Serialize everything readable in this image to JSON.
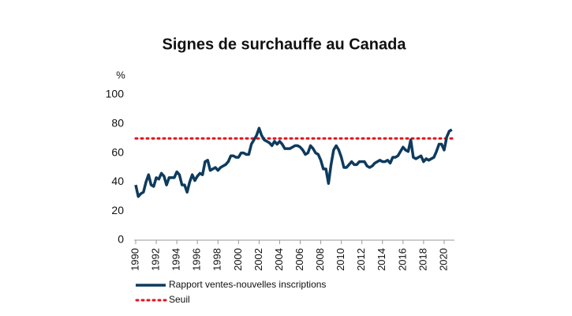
{
  "chart_data": {
    "type": "line",
    "title": "Signes de surchauffe au Canada",
    "ylabel": "%",
    "x": [
      1990,
      1990.25,
      1990.5,
      1990.75,
      1991,
      1991.25,
      1991.5,
      1991.75,
      1992,
      1992.25,
      1992.5,
      1992.75,
      1993,
      1993.25,
      1993.5,
      1993.75,
      1994,
      1994.25,
      1994.5,
      1994.75,
      1995,
      1995.25,
      1995.5,
      1995.75,
      1996,
      1996.25,
      1996.5,
      1996.75,
      1997,
      1997.25,
      1997.5,
      1997.75,
      1998,
      1998.25,
      1998.5,
      1998.75,
      1999,
      1999.25,
      1999.5,
      1999.75,
      2000,
      2000.25,
      2000.5,
      2000.75,
      2001,
      2001.25,
      2001.5,
      2001.75,
      2002,
      2002.25,
      2002.5,
      2002.75,
      2003,
      2003.25,
      2003.5,
      2003.75,
      2004,
      2004.25,
      2004.5,
      2004.75,
      2005,
      2005.25,
      2005.5,
      2005.75,
      2006,
      2006.25,
      2006.5,
      2006.75,
      2007,
      2007.25,
      2007.5,
      2007.75,
      2008,
      2008.25,
      2008.5,
      2008.75,
      2009,
      2009.25,
      2009.5,
      2009.75,
      2010,
      2010.25,
      2010.5,
      2010.75,
      2011,
      2011.25,
      2011.5,
      2011.75,
      2012,
      2012.25,
      2012.5,
      2012.75,
      2013,
      2013.25,
      2013.5,
      2013.75,
      2014,
      2014.25,
      2014.5,
      2014.75,
      2015,
      2015.25,
      2015.5,
      2015.75,
      2016,
      2016.25,
      2016.5,
      2016.75,
      2017,
      2017.25,
      2017.5,
      2017.75,
      2018,
      2018.25,
      2018.5,
      2018.75,
      2019,
      2019.25,
      2019.5,
      2019.75,
      2020,
      2020.25,
      2020.5,
      2020.75
    ],
    "series": [
      {
        "name": "Rapport ventes-nouvelles inscriptions",
        "color": "#0e3b5e",
        "values": [
          38,
          30,
          32,
          33,
          40,
          45,
          38,
          37,
          43,
          42,
          46,
          44,
          38,
          43,
          43,
          43,
          47,
          45,
          38,
          38,
          33,
          40,
          45,
          41,
          44,
          46,
          45,
          54,
          55,
          48,
          49,
          50,
          48,
          50,
          51,
          52,
          54,
          58,
          58,
          57,
          57,
          60,
          60,
          59,
          59,
          66,
          69,
          72,
          77,
          72,
          69,
          68,
          67,
          65,
          68,
          66,
          68,
          66,
          63,
          63,
          63,
          64,
          65,
          65,
          64,
          62,
          59,
          60,
          65,
          63,
          60,
          59,
          55,
          49,
          49,
          39,
          52,
          62,
          65,
          62,
          57,
          50,
          50,
          52,
          54,
          52,
          52,
          54,
          54,
          54,
          51,
          50,
          51,
          53,
          54,
          55,
          54,
          54,
          55,
          53,
          57,
          57,
          58,
          61,
          64,
          62,
          61,
          69,
          57,
          56,
          57,
          58,
          54,
          56,
          55,
          56,
          57,
          61,
          66,
          66,
          62,
          71,
          75,
          76
        ]
      }
    ],
    "threshold": {
      "name": "Seuil",
      "value": 70,
      "color": "#e3141b"
    },
    "xlim": [
      1990,
      2021
    ],
    "xticks": [
      1990,
      1992,
      1994,
      1996,
      1998,
      2000,
      2002,
      2004,
      2006,
      2008,
      2010,
      2012,
      2014,
      2016,
      2018,
      2020
    ],
    "ylim": [
      0,
      100
    ],
    "yticks": [
      0,
      20,
      40,
      60,
      80,
      100
    ]
  }
}
